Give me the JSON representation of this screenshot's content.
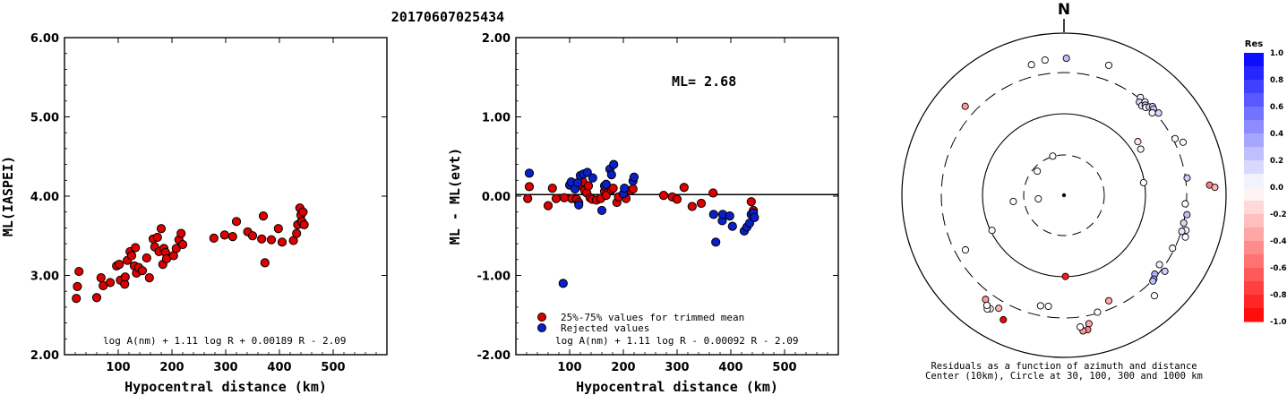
{
  "title": "20170607025434",
  "colors": {
    "trimmed": "#dd0000",
    "rejected": "#0a1fc8",
    "res_pos_max": "#0000ff",
    "res_neg_max": "#ff0000"
  },
  "chart_data": [
    {
      "type": "scatter",
      "id": "ml-vs-distance",
      "xlabel": "Hypocentral distance (km)",
      "ylabel": "ML(IASPEI)",
      "xlim": [
        0,
        600
      ],
      "ylim": [
        2.0,
        6.0
      ],
      "xticks": [
        "100",
        "200",
        "300",
        "400",
        "500"
      ],
      "yticks": [
        "2.00",
        "3.00",
        "4.00",
        "5.00",
        "6.00"
      ],
      "formula": "log A(nm) + 1.11 log R + 0.00189 R - 2.09",
      "points": [
        [
          22,
          2.71
        ],
        [
          24,
          2.86
        ],
        [
          27,
          3.05
        ],
        [
          60,
          2.72
        ],
        [
          68,
          2.97
        ],
        [
          72,
          2.87
        ],
        [
          85,
          2.91
        ],
        [
          97,
          3.12
        ],
        [
          102,
          3.14
        ],
        [
          104,
          2.94
        ],
        [
          112,
          2.89
        ],
        [
          113,
          2.98
        ],
        [
          117,
          3.19
        ],
        [
          122,
          3.3
        ],
        [
          125,
          3.25
        ],
        [
          130,
          3.12
        ],
        [
          132,
          3.35
        ],
        [
          134,
          3.03
        ],
        [
          138,
          3.1
        ],
        [
          145,
          3.06
        ],
        [
          153,
          3.22
        ],
        [
          158,
          2.97
        ],
        [
          165,
          3.46
        ],
        [
          168,
          3.36
        ],
        [
          173,
          3.48
        ],
        [
          176,
          3.3
        ],
        [
          180,
          3.59
        ],
        [
          183,
          3.14
        ],
        [
          185,
          3.34
        ],
        [
          188,
          3.29
        ],
        [
          190,
          3.21
        ],
        [
          203,
          3.25
        ],
        [
          208,
          3.34
        ],
        [
          213,
          3.45
        ],
        [
          217,
          3.53
        ],
        [
          220,
          3.39
        ],
        [
          278,
          3.47
        ],
        [
          298,
          3.51
        ],
        [
          313,
          3.49
        ],
        [
          320,
          3.68
        ],
        [
          341,
          3.55
        ],
        [
          350,
          3.5
        ],
        [
          367,
          3.46
        ],
        [
          370,
          3.75
        ],
        [
          373,
          3.16
        ],
        [
          385,
          3.45
        ],
        [
          398,
          3.59
        ],
        [
          405,
          3.42
        ],
        [
          426,
          3.44
        ],
        [
          432,
          3.53
        ],
        [
          434,
          3.64
        ],
        [
          438,
          3.85
        ],
        [
          440,
          3.76
        ],
        [
          441,
          3.68
        ],
        [
          442,
          3.68
        ],
        [
          444,
          3.8
        ],
        [
          446,
          3.64
        ]
      ]
    },
    {
      "type": "scatter",
      "id": "residual-vs-distance",
      "xlabel": "Hypocentral distance (km)",
      "ylabel": "ML - ML(evt)",
      "xlim": [
        0,
        600
      ],
      "ylim": [
        -2.0,
        2.0
      ],
      "xticks": [
        "100",
        "200",
        "300",
        "400",
        "500"
      ],
      "yticks": [
        "-2.00",
        "-1.00",
        "0.00",
        "1.00",
        "2.00"
      ],
      "formula": "log A(nm) + 1.11 log R - 0.00092 R - 2.09",
      "ml_label": "ML= 2.68",
      "legend": [
        "25%-75% values for trimmed mean",
        "Rejected values"
      ],
      "series": [
        {
          "name": "25%-75% values for trimmed mean",
          "color": "#dd0000",
          "points": [
            [
              22,
              -0.03
            ],
            [
              25,
              0.12
            ],
            [
              60,
              -0.12
            ],
            [
              68,
              0.1
            ],
            [
              75,
              -0.03
            ],
            [
              90,
              -0.02
            ],
            [
              104,
              -0.03
            ],
            [
              113,
              -0.04
            ],
            [
              117,
              -0.08
            ],
            [
              120,
              0.14
            ],
            [
              125,
              0.18
            ],
            [
              128,
              0.07
            ],
            [
              132,
              0.04
            ],
            [
              135,
              0.13
            ],
            [
              138,
              -0.02
            ],
            [
              142,
              -0.04
            ],
            [
              150,
              -0.05
            ],
            [
              158,
              -0.03
            ],
            [
              165,
              0.06
            ],
            [
              168,
              0.01
            ],
            [
              178,
              0.08
            ],
            [
              181,
              0.1
            ],
            [
              188,
              -0.08
            ],
            [
              191,
              -0.01
            ],
            [
              205,
              -0.03
            ],
            [
              213,
              0.07
            ],
            [
              218,
              0.09
            ],
            [
              275,
              0.01
            ],
            [
              291,
              -0.01
            ],
            [
              300,
              -0.04
            ],
            [
              313,
              0.11
            ],
            [
              328,
              -0.13
            ],
            [
              345,
              -0.09
            ],
            [
              367,
              0.04
            ],
            [
              438,
              -0.07
            ],
            [
              442,
              -0.18
            ]
          ]
        },
        {
          "name": "Rejected values",
          "color": "#0a1fc8",
          "points": [
            [
              25,
              0.29
            ],
            [
              88,
              -1.1
            ],
            [
              100,
              0.14
            ],
            [
              103,
              0.18
            ],
            [
              110,
              0.09
            ],
            [
              115,
              0.17
            ],
            [
              117,
              -0.11
            ],
            [
              120,
              0.26
            ],
            [
              126,
              0.28
            ],
            [
              133,
              0.3
            ],
            [
              143,
              0.23
            ],
            [
              160,
              -0.18
            ],
            [
              165,
              0.13
            ],
            [
              168,
              0.15
            ],
            [
              175,
              0.34
            ],
            [
              178,
              0.27
            ],
            [
              182,
              0.4
            ],
            [
              200,
              0.03
            ],
            [
              202,
              0.1
            ],
            [
              218,
              0.19
            ],
            [
              220,
              0.24
            ],
            [
              368,
              -0.23
            ],
            [
              372,
              -0.58
            ],
            [
              384,
              -0.31
            ],
            [
              385,
              -0.23
            ],
            [
              398,
              -0.25
            ],
            [
              403,
              -0.38
            ],
            [
              425,
              -0.44
            ],
            [
              430,
              -0.39
            ],
            [
              435,
              -0.34
            ],
            [
              438,
              -0.23
            ],
            [
              442,
              -0.21
            ],
            [
              444,
              -0.27
            ]
          ]
        }
      ]
    },
    {
      "type": "scatter",
      "id": "residual-map",
      "north_label": "N",
      "caption": [
        "Residuals as a function of azimuth and distance",
        "Center (10km), Circle at 30, 100, 300 and 1000 km"
      ],
      "colorbar_title": "Res",
      "colorbar_ticks": [
        "1.0",
        "0.8",
        "0.6",
        "0.4",
        "0.2",
        "0.0",
        "-0.2",
        "-0.4",
        "-0.6",
        "-0.8",
        "-1.0"
      ],
      "stations": [
        {
          "az": 352,
          "r": 0.842,
          "res": 0.0
        },
        {
          "az": 1,
          "r": 0.845,
          "res": 0.25
        },
        {
          "az": 19,
          "r": 0.848,
          "res": 0.0
        },
        {
          "az": 38,
          "r": 0.766,
          "res": 0.05
        },
        {
          "az": 39,
          "r": 0.739,
          "res": 0.15
        },
        {
          "az": 41,
          "r": 0.732,
          "res": 0.1
        },
        {
          "az": 41,
          "r": 0.762,
          "res": 0.02
        },
        {
          "az": 42,
          "r": 0.749,
          "res": 0.3
        },
        {
          "az": 43,
          "r": 0.74,
          "res": 0.0
        },
        {
          "az": 44,
          "r": 0.757,
          "res": 0.2
        },
        {
          "az": 45,
          "r": 0.773,
          "res": 0.1
        },
        {
          "az": 46,
          "r": 0.767,
          "res": 0.25
        },
        {
          "az": 47,
          "r": 0.745,
          "res": 0.05
        },
        {
          "az": 49,
          "r": 0.773,
          "res": 0.15
        },
        {
          "az": 54,
          "r": 0.563,
          "res": -0.1
        },
        {
          "az": 59,
          "r": 0.552,
          "res": 0.03
        },
        {
          "az": 63,
          "r": 0.769,
          "res": 0.0
        },
        {
          "az": 66,
          "r": 0.804,
          "res": 0.02
        },
        {
          "az": 81,
          "r": 0.497,
          "res": 0.0
        },
        {
          "az": 82,
          "r": 0.767,
          "res": 0.2
        },
        {
          "az": 86,
          "r": 0.9,
          "res": -0.5
        },
        {
          "az": 87,
          "r": 0.932,
          "res": -0.3
        },
        {
          "az": 94,
          "r": 0.75,
          "res": 0.0
        },
        {
          "az": 99,
          "r": 0.768,
          "res": 0.25
        },
        {
          "az": 103,
          "r": 0.758,
          "res": 0.15
        },
        {
          "az": 106,
          "r": 0.783,
          "res": 0.05
        },
        {
          "az": 107,
          "r": 0.76,
          "res": 0.1
        },
        {
          "az": 109,
          "r": 0.792,
          "res": 0.0
        },
        {
          "az": 116,
          "r": 0.745,
          "res": -0.05
        },
        {
          "az": 126,
          "r": 0.728,
          "res": 0.05
        },
        {
          "az": 127,
          "r": 0.779,
          "res": 0.2
        },
        {
          "az": 131,
          "r": 0.742,
          "res": 0.3
        },
        {
          "az": 133,
          "r": 0.758,
          "res": 0.35
        },
        {
          "az": 134,
          "r": 0.762,
          "res": 0.25
        },
        {
          "az": 138,
          "r": 0.834,
          "res": 0.0
        },
        {
          "az": 157,
          "r": 0.707,
          "res": -0.35
        },
        {
          "az": 164,
          "r": 0.75,
          "res": 0.0
        },
        {
          "az": 169,
          "r": 0.807,
          "res": -0.35
        },
        {
          "az": 170,
          "r": 0.842,
          "res": -0.5
        },
        {
          "az": 172,
          "r": 0.845,
          "res": -0.4
        },
        {
          "az": 173,
          "r": 0.818,
          "res": 0.0
        },
        {
          "az": 179,
          "r": 0.501,
          "res": -0.9
        },
        {
          "az": 188,
          "r": 0.692,
          "res": 0.0
        },
        {
          "az": 192,
          "r": 0.697,
          "res": 0.0
        },
        {
          "az": 206,
          "r": 0.854,
          "res": -1.0
        },
        {
          "az": 210,
          "r": 0.805,
          "res": -0.3
        },
        {
          "az": 213,
          "r": 0.835,
          "res": 0.0
        },
        {
          "az": 214,
          "r": 0.846,
          "res": 0.0
        },
        {
          "az": 215,
          "r": 0.829,
          "res": 0.0
        },
        {
          "az": 217,
          "r": 0.804,
          "res": -0.4
        },
        {
          "az": 241,
          "r": 0.695,
          "res": 0.0
        },
        {
          "az": 244,
          "r": 0.494,
          "res": 0.0
        },
        {
          "az": 262,
          "r": 0.16,
          "res": 0.0
        },
        {
          "az": 263,
          "r": 0.315,
          "res": 0.0
        },
        {
          "az": 312,
          "r": 0.222,
          "res": 0.0
        },
        {
          "az": 312,
          "r": 0.82,
          "res": -0.4
        },
        {
          "az": 344,
          "r": 0.251,
          "res": 0.0
        },
        {
          "az": 346,
          "r": 0.83,
          "res": 0.0
        }
      ]
    }
  ]
}
